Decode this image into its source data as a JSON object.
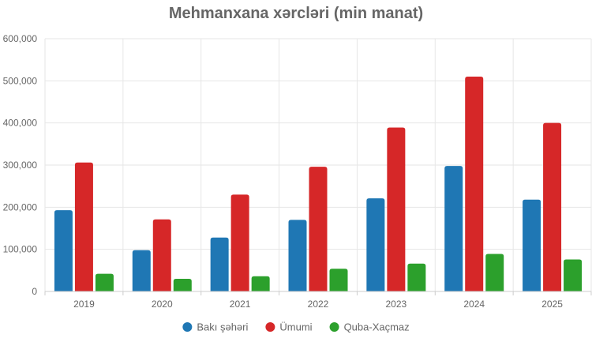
{
  "chart_data": {
    "type": "bar",
    "title": "Mehmanxana xərcləri (min manat)",
    "xlabel": "",
    "ylabel": "",
    "categories": [
      "2019",
      "2020",
      "2021",
      "2022",
      "2023",
      "2024",
      "2025"
    ],
    "series": [
      {
        "name": "Bakı şəhəri",
        "color": "#1f77b4",
        "values": [
          193000,
          98000,
          128000,
          170000,
          221000,
          298000,
          218000
        ]
      },
      {
        "name": "Ümumi",
        "color": "#d62728",
        "values": [
          306000,
          171000,
          230000,
          296000,
          389000,
          510000,
          400000
        ]
      },
      {
        "name": "Quba-Xaçmaz",
        "color": "#2ca02c",
        "values": [
          42000,
          30000,
          36000,
          54000,
          66000,
          89000,
          76000
        ]
      }
    ],
    "ylim": [
      0,
      600000
    ],
    "yticks": [
      "0",
      "100,000",
      "200,000",
      "300,000",
      "400,000",
      "500,000",
      "600,000"
    ],
    "grid": true,
    "legend_position": "bottom"
  }
}
